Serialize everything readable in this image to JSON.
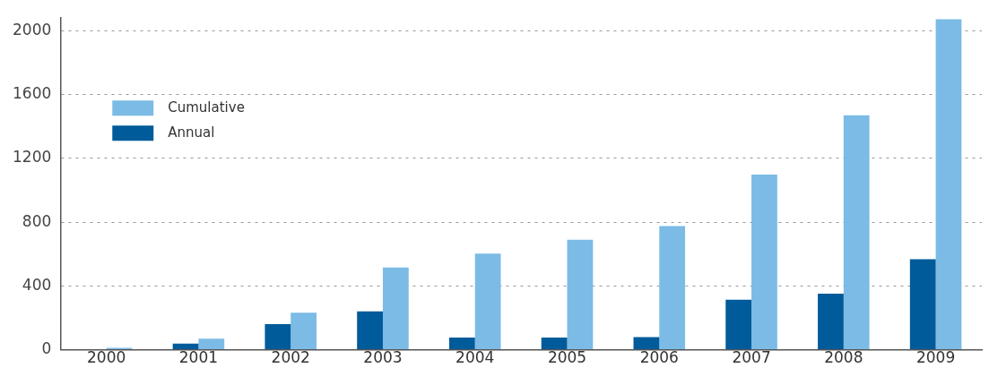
{
  "chart_data": {
    "type": "bar",
    "categories": [
      "2000",
      "2001",
      "2002",
      "2003",
      "2004",
      "2005",
      "2006",
      "2007",
      "2008",
      "2009"
    ],
    "series": [
      {
        "name": "Annual",
        "color": "#005b9a",
        "values": [
          null,
          38,
          160,
          240,
          77,
          77,
          79,
          313,
          352,
          568
        ]
      },
      {
        "name": "Cumulative",
        "color": "#7bbbe6",
        "values": [
          12,
          70,
          232,
          516,
          603,
          690,
          775,
          1098,
          1470,
          2073
        ]
      }
    ],
    "ylim": [
      0,
      2080
    ],
    "yticks": [
      0,
      400,
      800,
      1200,
      1600,
      2000
    ],
    "grid": "y",
    "legend": "top left"
  }
}
